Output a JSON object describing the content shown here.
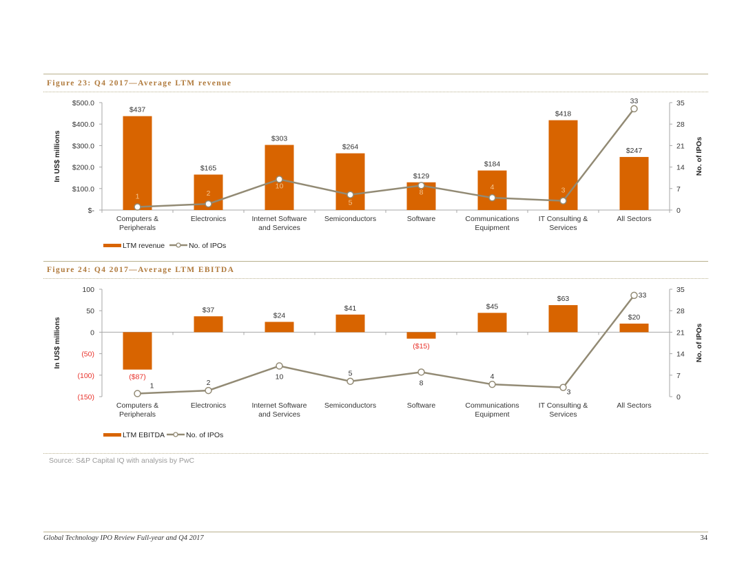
{
  "figures": [
    {
      "title": "Figure 23: Q4 2017—Average LTM revenue",
      "ylabel": "In US$ millions",
      "y2label": "No. of IPOs",
      "legend": {
        "bar": "LTM revenue",
        "line": "No. of IPOs"
      }
    },
    {
      "title": "Figure 24: Q4 2017—Average LTM EBITDA",
      "ylabel": "In US$ millions",
      "y2label": "No. of IPOs",
      "legend": {
        "bar": "LTM EBITDA",
        "line": "No. of IPOs"
      }
    }
  ],
  "chart_data": [
    {
      "type": "bar",
      "title": "Figure 23: Q4 2017—Average LTM revenue",
      "categories": [
        "Computers & Peripherals",
        "Electronics",
        "Internet Software and Services",
        "Semiconductors",
        "Software",
        "Communications Equipment",
        "IT Consulting & Services",
        "All Sectors"
      ],
      "series": [
        {
          "name": "LTM revenue",
          "type": "bar",
          "axis": "left",
          "values": [
            437,
            165,
            303,
            264,
            129,
            184,
            418,
            247
          ],
          "labels": [
            "$437",
            "$165",
            "$303",
            "$264",
            "$129",
            "$184",
            "$418",
            "$247"
          ]
        },
        {
          "name": "No. of IPOs",
          "type": "line",
          "axis": "right",
          "values": [
            1,
            2,
            10,
            5,
            8,
            4,
            3,
            33
          ]
        }
      ],
      "ylabel": "In US$ millions",
      "y2label": "No. of IPOs",
      "ylim": [
        0,
        500
      ],
      "y2lim": [
        0,
        35
      ],
      "yticks": [
        "$-",
        "$100.0",
        "$200.0",
        "$300.0",
        "$400.0",
        "$500.0"
      ],
      "y2ticks": [
        "0",
        "7",
        "14",
        "21",
        "28",
        "35"
      ],
      "legend_position": "bottom-left",
      "grid": false,
      "colors": {
        "bar": "#d86400",
        "line": "#928a74",
        "line_label": "#f5c58e"
      }
    },
    {
      "type": "bar",
      "title": "Figure 24: Q4 2017—Average LTM EBITDA",
      "categories": [
        "Computers & Peripherals",
        "Electronics",
        "Internet Software and Services",
        "Semiconductors",
        "Software",
        "Communications Equipment",
        "IT Consulting & Services",
        "All Sectors"
      ],
      "series": [
        {
          "name": "LTM EBITDA",
          "type": "bar",
          "axis": "left",
          "values": [
            -87,
            37,
            24,
            41,
            -15,
            45,
            63,
            20
          ],
          "labels": [
            "($87)",
            "$37",
            "$24",
            "$41",
            "($15)",
            "$45",
            "$63",
            "$20"
          ]
        },
        {
          "name": "No. of IPOs",
          "type": "line",
          "axis": "right",
          "values": [
            1,
            2,
            10,
            5,
            8,
            4,
            3,
            33
          ]
        }
      ],
      "ylabel": "In US$ millions",
      "y2label": "No. of IPOs",
      "ylim": [
        -150,
        100
      ],
      "y2lim": [
        0,
        35
      ],
      "yticks": [
        "(150)",
        "(100)",
        "(50)",
        "0",
        "50",
        "100"
      ],
      "y2ticks": [
        "0",
        "7",
        "14",
        "21",
        "28",
        "35"
      ],
      "legend_position": "bottom-left",
      "grid": false,
      "colors": {
        "bar": "#d86400",
        "line": "#928a74",
        "negative_label": "#e8322b"
      }
    }
  ],
  "source": "Source: S&P Capital IQ with analysis by PwC",
  "footer": {
    "title": "Global Technology IPO Review Full-year and Q4 2017",
    "page": "34"
  }
}
